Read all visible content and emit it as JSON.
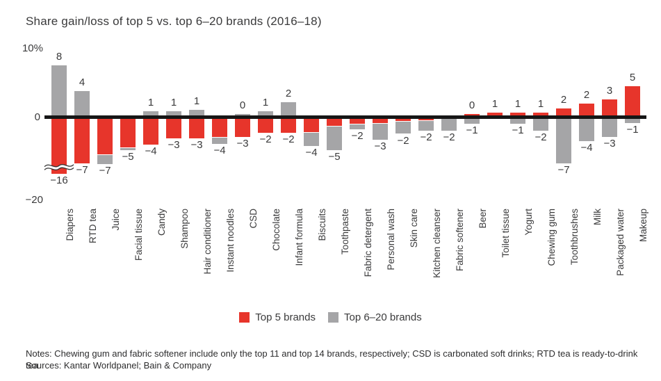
{
  "title": "Share gain/loss of top 5 vs. top 6–20 brands (2016–18)",
  "axis": {
    "top_tick": "10%",
    "zero_tick": "0",
    "bottom_tick": "−20"
  },
  "colors": {
    "top5": "#e7352b",
    "top620": "#a5a5a7",
    "axis_line": "#161616",
    "text": "#3a3a3b"
  },
  "legend": {
    "items": [
      {
        "series": "top5",
        "label": "Top 5 brands"
      },
      {
        "series": "top620",
        "label": "Top 6–20 brands"
      }
    ]
  },
  "footer": {
    "notes": "Notes: Chewing gum and fabric softener include only the top 11 and top 14 brands, respectively; CSD is carbonated soft drinks; RTD tea is ready-to-drink tea",
    "sources": "Sources: Kantar Worldpanel; Bain & Company"
  },
  "chart_data": {
    "type": "bar",
    "title": "Share gain/loss of top 5 vs. top 6–20 brands (2016–18)",
    "subtype": "signed stacked bars, units are share points (%)",
    "ylim": [
      -20,
      10
    ],
    "grid": false,
    "legend_position": "bottom-center",
    "axis_break_note": "Diapers top-5 bar is truncated with a double squiggle break; it represents −16",
    "series": [
      {
        "name": "Top 5 brands",
        "color": "#e7352b"
      },
      {
        "name": "Top 6–20 brands",
        "color": "#a5a5a7"
      }
    ],
    "categories": [
      {
        "name": "Diapers",
        "top620": 8,
        "top5": -16,
        "label_above": "8",
        "label_below": "−16",
        "pos": [
          {
            "series": "top620",
            "units": 8
          }
        ],
        "neg": [
          {
            "series": "top5",
            "units": 8.6,
            "brk": true
          }
        ]
      },
      {
        "name": "RTD tea",
        "top620": 4,
        "top5": -7,
        "label_above": "4",
        "label_below": "−7",
        "pos": [
          {
            "series": "top620",
            "units": 4
          }
        ],
        "neg": [
          {
            "series": "top5",
            "units": 7
          }
        ]
      },
      {
        "name": "Juice",
        "total": -7,
        "label_above": null,
        "label_below": "−7",
        "pos": [],
        "neg": [
          {
            "series": "top5",
            "units": 5.6
          },
          {
            "series": "top620",
            "units": 1.5
          }
        ]
      },
      {
        "name": "Facial tissue",
        "total": -5,
        "label_above": null,
        "label_below": "−5",
        "pos": [],
        "neg": [
          {
            "series": "top5",
            "units": 4.6
          },
          {
            "series": "top620",
            "units": 0.4
          }
        ]
      },
      {
        "name": "Candy",
        "top620": 1,
        "top5": -4,
        "label_above": "1",
        "label_below": "−4",
        "pos": [
          {
            "series": "top620",
            "units": 1
          }
        ],
        "neg": [
          {
            "series": "top5",
            "units": 4.1
          }
        ]
      },
      {
        "name": "Shampoo",
        "top620": 1,
        "top5": -3,
        "label_above": "1",
        "label_below": "−3",
        "pos": [
          {
            "series": "top620",
            "units": 1
          }
        ],
        "neg": [
          {
            "series": "top5",
            "units": 3.2
          }
        ]
      },
      {
        "name": "Hair conditioner",
        "top620": 1,
        "top5": -3,
        "label_above": "1",
        "label_below": "−3",
        "pos": [
          {
            "series": "top620",
            "units": 1.2
          }
        ],
        "neg": [
          {
            "series": "top5",
            "units": 3.2
          }
        ]
      },
      {
        "name": "Instant noodles",
        "total": -4,
        "label_above": null,
        "label_below": "−4",
        "pos": [],
        "neg": [
          {
            "series": "top5",
            "units": 3
          },
          {
            "series": "top620",
            "units": 1
          }
        ]
      },
      {
        "name": "CSD",
        "top620": 0,
        "top5": -3,
        "label_above": "0",
        "label_below": "−3",
        "pos": [
          {
            "series": "top620",
            "units": 0.5
          }
        ],
        "neg": [
          {
            "series": "top5",
            "units": 3
          }
        ]
      },
      {
        "name": "Chocolate",
        "top620": 1,
        "top5": -2,
        "label_above": "1",
        "label_below": "−2",
        "pos": [
          {
            "series": "top620",
            "units": 1
          }
        ],
        "neg": [
          {
            "series": "top5",
            "units": 2.3
          }
        ]
      },
      {
        "name": "Infant formula",
        "top620": 2,
        "top5": -2,
        "label_above": "2",
        "label_below": "−2",
        "pos": [
          {
            "series": "top620",
            "units": 2.3
          }
        ],
        "neg": [
          {
            "series": "top5",
            "units": 2.3
          }
        ]
      },
      {
        "name": "Biscuits",
        "total": -4,
        "label_above": null,
        "label_below": "−4",
        "pos": [],
        "neg": [
          {
            "series": "top5",
            "units": 2.2
          },
          {
            "series": "top620",
            "units": 2.2
          }
        ]
      },
      {
        "name": "Toothpaste",
        "total": -5,
        "label_above": null,
        "label_below": "−5",
        "pos": [],
        "neg": [
          {
            "series": "top5",
            "units": 1.3
          },
          {
            "series": "top620",
            "units": 3.7
          }
        ]
      },
      {
        "name": "Fabric detergent",
        "total": -2,
        "label_above": null,
        "label_below": "−2",
        "pos": [],
        "neg": [
          {
            "series": "top5",
            "units": 1
          },
          {
            "series": "top620",
            "units": 0.8
          }
        ]
      },
      {
        "name": "Personal wash",
        "total": -3,
        "label_above": null,
        "label_below": "−3",
        "pos": [],
        "neg": [
          {
            "series": "top5",
            "units": 0.8
          },
          {
            "series": "top620",
            "units": 2.6
          }
        ]
      },
      {
        "name": "Skin care",
        "total": -2,
        "label_above": null,
        "label_below": "−2",
        "pos": [],
        "neg": [
          {
            "series": "top5",
            "units": 0.5
          },
          {
            "series": "top620",
            "units": 2
          }
        ]
      },
      {
        "name": "Kitchen cleanser",
        "total": -2,
        "label_above": null,
        "label_below": "−2",
        "pos": [],
        "neg": [
          {
            "series": "top5",
            "units": 0.4
          },
          {
            "series": "top620",
            "units": 1.6
          }
        ]
      },
      {
        "name": "Fabric softener",
        "total": -2,
        "label_above": null,
        "label_below": "−2",
        "pos": [],
        "neg": [
          {
            "series": "top620",
            "units": 2
          }
        ]
      },
      {
        "name": "Beer",
        "top5": 0,
        "top620": -1,
        "label_above": "0",
        "label_below": "−1",
        "pos": [
          {
            "series": "top5",
            "units": 0.5
          }
        ],
        "neg": [
          {
            "series": "top620",
            "units": 1
          }
        ]
      },
      {
        "name": "Toilet tissue",
        "top5": 1,
        "label_above": "1",
        "label_below": null,
        "pos": [
          {
            "series": "top5",
            "units": 0.75
          }
        ],
        "neg": []
      },
      {
        "name": "Yogurt",
        "top5": 1,
        "top620": -1,
        "label_above": "1",
        "label_below": "−1",
        "pos": [
          {
            "series": "top5",
            "units": 0.75
          }
        ],
        "neg": [
          {
            "series": "top620",
            "units": 1
          }
        ]
      },
      {
        "name": "Chewing gum",
        "top5": 1,
        "top620": -2,
        "label_above": "1",
        "label_below": "−2",
        "pos": [
          {
            "series": "top5",
            "units": 0.75
          }
        ],
        "neg": [
          {
            "series": "top620",
            "units": 2
          }
        ]
      },
      {
        "name": "Toothbrushes",
        "top5": 2,
        "top620": -7,
        "label_above": "2",
        "label_below": "−7",
        "pos": [
          {
            "series": "top5",
            "units": 1.4
          }
        ],
        "neg": [
          {
            "series": "top620",
            "units": 7
          }
        ]
      },
      {
        "name": "Milk",
        "top5": 2,
        "top620": -4,
        "label_above": "2",
        "label_below": "−4",
        "pos": [
          {
            "series": "top5",
            "units": 2.1
          }
        ],
        "neg": [
          {
            "series": "top620",
            "units": 3.6
          }
        ]
      },
      {
        "name": "Packaged water",
        "top5": 3,
        "top620": -3,
        "label_above": "3",
        "label_below": "−3",
        "pos": [
          {
            "series": "top5",
            "units": 2.8
          }
        ],
        "neg": [
          {
            "series": "top620",
            "units": 3
          }
        ]
      },
      {
        "name": "Makeup",
        "top5": 5,
        "top620": -1,
        "label_above": "5",
        "label_below": "−1",
        "pos": [
          {
            "series": "top5",
            "units": 4.8
          }
        ],
        "neg": [
          {
            "series": "top620",
            "units": 0.9
          }
        ]
      }
    ]
  }
}
